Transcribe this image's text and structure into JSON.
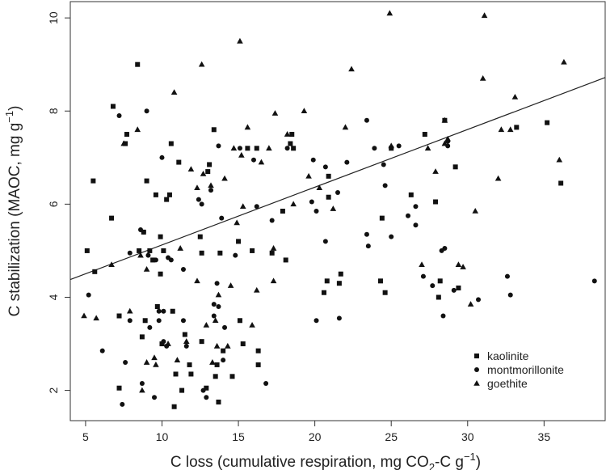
{
  "chart_data": {
    "type": "scatter",
    "title": "",
    "xlabel": {
      "pre": "C loss (cumulative respiration, mg CO",
      "sub": "2",
      "mid": "-C g",
      "sup": "−1",
      "post": ")"
    },
    "ylabel": {
      "pre": "C stabilization (MAOC, mg g",
      "sup": "−1",
      "post": ")"
    },
    "xlim": [
      4,
      39
    ],
    "ylim": [
      1.35,
      10.35
    ],
    "xticks": [
      5,
      10,
      15,
      20,
      25,
      30,
      35
    ],
    "yticks": [
      2,
      4,
      6,
      8,
      10
    ],
    "grid": false,
    "legend_position": "bottom-right",
    "trendline": {
      "x": [
        4,
        39
      ],
      "y": [
        4.38,
        8.72
      ]
    },
    "series": [
      {
        "name": "kaolinite",
        "marker": "square",
        "points": [
          [
            5.1,
            5.0
          ],
          [
            5.5,
            6.5
          ],
          [
            5.6,
            4.55
          ],
          [
            6.7,
            5.7
          ],
          [
            6.8,
            8.1
          ],
          [
            7.2,
            3.6
          ],
          [
            7.2,
            2.05
          ],
          [
            7.6,
            7.3
          ],
          [
            7.7,
            7.5
          ],
          [
            8.4,
            9.0
          ],
          [
            8.5,
            5.0
          ],
          [
            8.7,
            3.15
          ],
          [
            8.8,
            5.4
          ],
          [
            8.9,
            3.5
          ],
          [
            9.0,
            6.5
          ],
          [
            9.2,
            5.0
          ],
          [
            9.4,
            4.8
          ],
          [
            9.6,
            6.2
          ],
          [
            9.7,
            3.8
          ],
          [
            9.9,
            5.3
          ],
          [
            9.9,
            4.5
          ],
          [
            10.0,
            3.0
          ],
          [
            10.1,
            5.0
          ],
          [
            10.3,
            6.1
          ],
          [
            10.5,
            6.2
          ],
          [
            10.6,
            7.3
          ],
          [
            10.7,
            3.7
          ],
          [
            10.8,
            1.65
          ],
          [
            10.9,
            2.35
          ],
          [
            11.1,
            6.9
          ],
          [
            11.3,
            2.0
          ],
          [
            11.5,
            3.2
          ],
          [
            11.8,
            2.55
          ],
          [
            11.9,
            2.35
          ],
          [
            12.5,
            5.3
          ],
          [
            12.6,
            4.95
          ],
          [
            12.6,
            3.05
          ],
          [
            12.9,
            2.05
          ],
          [
            13.0,
            6.7
          ],
          [
            13.1,
            6.85
          ],
          [
            13.4,
            7.6
          ],
          [
            13.5,
            2.3
          ],
          [
            13.7,
            1.75
          ],
          [
            13.6,
            2.55
          ],
          [
            13.8,
            4.95
          ],
          [
            14.0,
            2.85
          ],
          [
            14.6,
            2.3
          ],
          [
            15.0,
            5.2
          ],
          [
            15.1,
            3.5
          ],
          [
            15.3,
            3.0
          ],
          [
            15.6,
            7.2
          ],
          [
            15.9,
            5.0
          ],
          [
            16.2,
            7.2
          ],
          [
            16.3,
            2.85
          ],
          [
            16.3,
            2.55
          ],
          [
            17.2,
            4.95
          ],
          [
            17.9,
            5.85
          ],
          [
            18.1,
            4.8
          ],
          [
            18.4,
            7.3
          ],
          [
            18.5,
            7.5
          ],
          [
            18.6,
            7.2
          ],
          [
            20.6,
            4.1
          ],
          [
            20.9,
            6.6
          ],
          [
            20.8,
            4.35
          ],
          [
            20.9,
            6.15
          ],
          [
            21.6,
            4.3
          ],
          [
            21.7,
            4.5
          ],
          [
            24.3,
            4.35
          ],
          [
            24.4,
            5.7
          ],
          [
            24.6,
            4.1
          ],
          [
            25.0,
            7.2
          ],
          [
            26.3,
            6.2
          ],
          [
            27.2,
            7.5
          ],
          [
            27.9,
            6.05
          ],
          [
            28.1,
            4.0
          ],
          [
            28.2,
            4.35
          ],
          [
            28.5,
            7.8
          ],
          [
            29.2,
            6.8
          ],
          [
            29.4,
            4.2
          ],
          [
            33.2,
            7.65
          ],
          [
            35.2,
            7.75
          ],
          [
            36.1,
            6.45
          ]
        ]
      },
      {
        "name": "montmorillonite",
        "marker": "circle",
        "points": [
          [
            5.2,
            4.05
          ],
          [
            6.1,
            2.85
          ],
          [
            7.2,
            7.9
          ],
          [
            7.4,
            1.7
          ],
          [
            7.6,
            2.6
          ],
          [
            7.9,
            4.95
          ],
          [
            7.9,
            3.5
          ],
          [
            8.6,
            5.45
          ],
          [
            8.7,
            2.15
          ],
          [
            8.8,
            5.4
          ],
          [
            9.0,
            8.0
          ],
          [
            9.1,
            4.9
          ],
          [
            9.2,
            3.35
          ],
          [
            9.5,
            1.85
          ],
          [
            9.6,
            4.8
          ],
          [
            9.8,
            3.5
          ],
          [
            9.8,
            3.7
          ],
          [
            10.0,
            7.0
          ],
          [
            10.1,
            3.05
          ],
          [
            10.1,
            3.7
          ],
          [
            10.3,
            2.95
          ],
          [
            10.4,
            4.85
          ],
          [
            10.6,
            4.8
          ],
          [
            11.4,
            4.6
          ],
          [
            11.4,
            3.5
          ],
          [
            11.6,
            2.95
          ],
          [
            12.4,
            6.1
          ],
          [
            12.6,
            6.0
          ],
          [
            12.7,
            2.0
          ],
          [
            12.9,
            1.85
          ],
          [
            13.2,
            6.3
          ],
          [
            13.4,
            3.6
          ],
          [
            13.4,
            3.85
          ],
          [
            13.6,
            4.3
          ],
          [
            13.7,
            3.8
          ],
          [
            13.7,
            7.25
          ],
          [
            13.9,
            5.7
          ],
          [
            14.0,
            2.65
          ],
          [
            14.1,
            3.35
          ],
          [
            14.8,
            4.9
          ],
          [
            15.1,
            7.2
          ],
          [
            16.0,
            6.95
          ],
          [
            16.2,
            5.95
          ],
          [
            16.8,
            2.15
          ],
          [
            17.2,
            5.65
          ],
          [
            18.2,
            7.2
          ],
          [
            19.8,
            6.05
          ],
          [
            19.9,
            6.95
          ],
          [
            20.1,
            3.5
          ],
          [
            20.1,
            5.85
          ],
          [
            20.7,
            6.8
          ],
          [
            20.7,
            5.2
          ],
          [
            21.5,
            6.25
          ],
          [
            21.6,
            3.55
          ],
          [
            22.1,
            6.9
          ],
          [
            23.4,
            7.8
          ],
          [
            23.4,
            5.35
          ],
          [
            23.5,
            5.1
          ],
          [
            23.9,
            7.2
          ],
          [
            24.5,
            6.85
          ],
          [
            24.6,
            6.4
          ],
          [
            25.0,
            5.3
          ],
          [
            25.5,
            7.25
          ],
          [
            26.1,
            5.75
          ],
          [
            26.6,
            5.55
          ],
          [
            26.6,
            5.95
          ],
          [
            27.1,
            4.45
          ],
          [
            27.7,
            4.25
          ],
          [
            28.3,
            5.0
          ],
          [
            28.4,
            3.6
          ],
          [
            28.5,
            5.05
          ],
          [
            28.7,
            7.25
          ],
          [
            28.7,
            7.35
          ],
          [
            29.1,
            4.15
          ],
          [
            30.7,
            3.95
          ],
          [
            32.6,
            4.45
          ],
          [
            32.8,
            4.05
          ],
          [
            38.3,
            4.35
          ]
        ]
      },
      {
        "name": "goethite",
        "marker": "triangle",
        "points": [
          [
            4.9,
            3.6
          ],
          [
            5.7,
            3.55
          ],
          [
            6.7,
            4.7
          ],
          [
            7.5,
            7.3
          ],
          [
            7.9,
            3.7
          ],
          [
            8.4,
            7.6
          ],
          [
            8.6,
            4.9
          ],
          [
            8.7,
            2.0
          ],
          [
            9.0,
            4.6
          ],
          [
            9.0,
            2.6
          ],
          [
            9.5,
            2.7
          ],
          [
            9.6,
            2.55
          ],
          [
            10.4,
            3.0
          ],
          [
            10.8,
            8.4
          ],
          [
            11.0,
            2.65
          ],
          [
            11.2,
            5.05
          ],
          [
            11.6,
            3.05
          ],
          [
            11.9,
            6.75
          ],
          [
            12.3,
            6.35
          ],
          [
            12.3,
            4.35
          ],
          [
            12.6,
            9.0
          ],
          [
            12.7,
            6.65
          ],
          [
            12.9,
            3.4
          ],
          [
            13.2,
            6.4
          ],
          [
            13.3,
            2.6
          ],
          [
            13.5,
            3.5
          ],
          [
            13.6,
            2.95
          ],
          [
            13.7,
            4.05
          ],
          [
            14.1,
            6.55
          ],
          [
            14.3,
            2.95
          ],
          [
            14.5,
            4.25
          ],
          [
            14.7,
            7.2
          ],
          [
            14.9,
            5.6
          ],
          [
            15.1,
            9.5
          ],
          [
            15.2,
            7.05
          ],
          [
            15.3,
            5.95
          ],
          [
            15.6,
            7.65
          ],
          [
            15.9,
            3.4
          ],
          [
            16.2,
            4.15
          ],
          [
            16.5,
            6.9
          ],
          [
            17.0,
            7.2
          ],
          [
            17.3,
            4.35
          ],
          [
            17.3,
            5.05
          ],
          [
            17.4,
            7.95
          ],
          [
            18.2,
            7.5
          ],
          [
            18.6,
            6.0
          ],
          [
            19.3,
            8.0
          ],
          [
            19.6,
            6.6
          ],
          [
            20.3,
            6.35
          ],
          [
            21.2,
            5.9
          ],
          [
            22.0,
            7.65
          ],
          [
            22.4,
            8.9
          ],
          [
            24.9,
            10.1
          ],
          [
            25.0,
            7.25
          ],
          [
            27.0,
            4.7
          ],
          [
            27.4,
            7.2
          ],
          [
            27.9,
            6.7
          ],
          [
            28.5,
            7.3
          ],
          [
            28.5,
            7.8
          ],
          [
            28.7,
            7.4
          ],
          [
            29.4,
            4.7
          ],
          [
            29.7,
            4.65
          ],
          [
            30.2,
            3.85
          ],
          [
            30.5,
            5.85
          ],
          [
            31.0,
            8.7
          ],
          [
            31.1,
            10.05
          ],
          [
            32.0,
            6.55
          ],
          [
            32.2,
            7.6
          ],
          [
            32.8,
            7.6
          ],
          [
            33.1,
            8.3
          ],
          [
            36.0,
            6.95
          ],
          [
            36.3,
            9.05
          ]
        ]
      }
    ]
  }
}
